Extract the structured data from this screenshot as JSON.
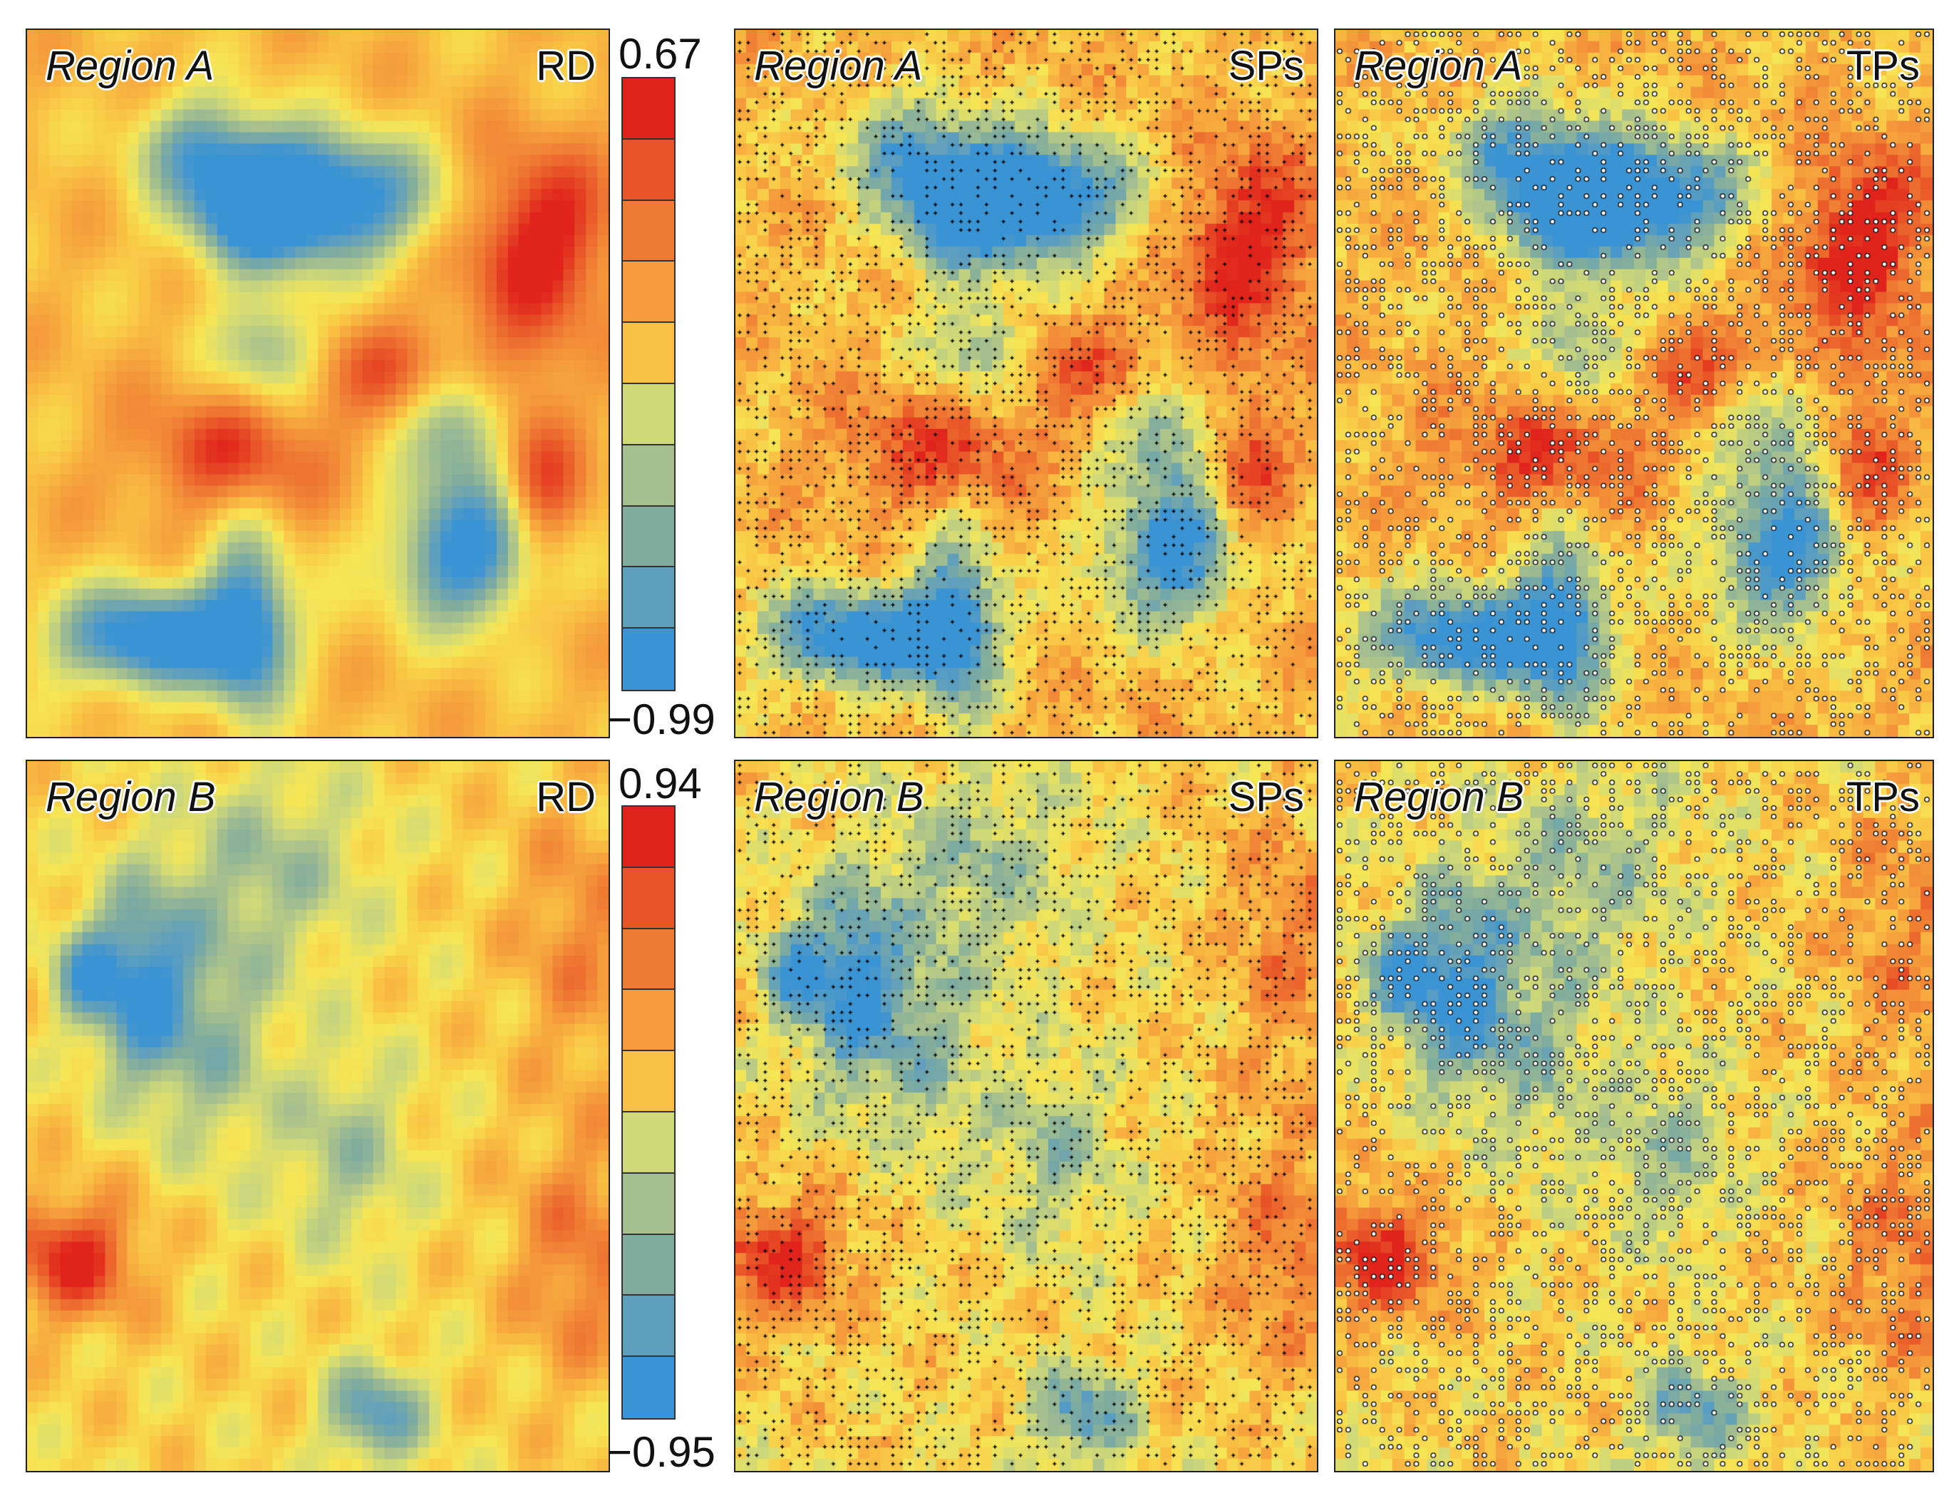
{
  "figure_type": "heatmap",
  "colors": {
    "palette": [
      "#3a93d3",
      "#5f9fbe",
      "#80ac9e",
      "#a6bf8e",
      "#cfd978",
      "#f6e655",
      "#f9c243",
      "#f59d3c",
      "#ef7a33",
      "#e85327",
      "#e0241c"
    ]
  },
  "rows": [
    {
      "region": "Region A",
      "colorbar": {
        "max_label": "0.67",
        "min_label": "−0.99"
      },
      "panels": [
        {
          "region_label": "Region A",
          "method_label": "RD",
          "markers": "none"
        },
        {
          "region_label": "Region A",
          "method_label": "SPs",
          "markers": "plus"
        },
        {
          "region_label": "Region A",
          "method_label": "TPs",
          "markers": "circle"
        }
      ]
    },
    {
      "region": "Region B",
      "colorbar": {
        "max_label": "0.94",
        "min_label": "−0.95"
      },
      "panels": [
        {
          "region_label": "Region B",
          "method_label": "RD",
          "markers": "none"
        },
        {
          "region_label": "Region B",
          "method_label": "SPs",
          "markers": "plus"
        },
        {
          "region_label": "Region B",
          "method_label": "TPs",
          "markers": "circle"
        }
      ]
    }
  ],
  "chart_data": {
    "type": "heatmap",
    "panels": [
      {
        "region": "Region A",
        "method": "RD",
        "value_range": [
          -0.99,
          0.67
        ]
      },
      {
        "region": "Region A",
        "method": "SPs",
        "value_range": [
          -0.99,
          0.67
        ]
      },
      {
        "region": "Region A",
        "method": "TPs",
        "value_range": [
          -0.99,
          0.67
        ]
      },
      {
        "region": "Region B",
        "method": "RD",
        "value_range": [
          -0.95,
          0.94
        ]
      },
      {
        "region": "Region B",
        "method": "SPs",
        "value_range": [
          -0.95,
          0.94
        ]
      },
      {
        "region": "Region B",
        "method": "TPs",
        "value_range": [
          -0.95,
          0.94
        ]
      }
    ],
    "colorbars": [
      {
        "region": "Region A",
        "min": -0.99,
        "max": 0.67,
        "n_bins": 10
      },
      {
        "region": "Region B",
        "min": -0.95,
        "max": 0.94,
        "n_bins": 10
      }
    ]
  }
}
